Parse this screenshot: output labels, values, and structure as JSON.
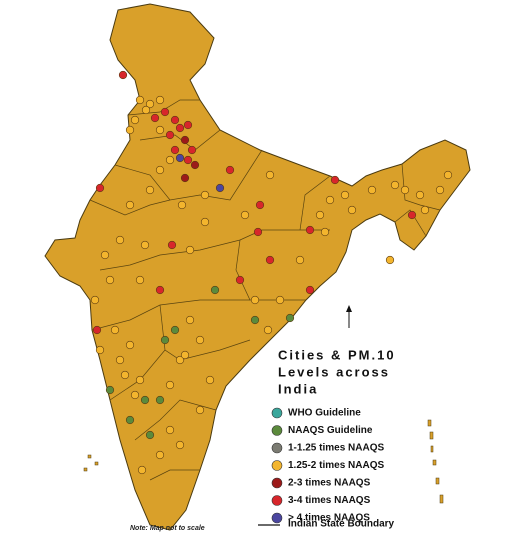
{
  "title_lines": [
    "Cities & PM.10",
    "Levels across",
    "India"
  ],
  "legend": [
    {
      "label": "WHO Guideline",
      "color": "#3aa79c"
    },
    {
      "label": "NAAQS Guideline",
      "color": "#5b8a3c"
    },
    {
      "label": "1-1.25 times NAAQS",
      "color": "#7b7b72"
    },
    {
      "label": "1.25-2 times NAAQS",
      "color": "#f3b52e"
    },
    {
      "label": "2-3 times NAAQS",
      "color": "#9c1a1a"
    },
    {
      "label": "3-4 times NAAQS",
      "color": "#d7262b"
    },
    {
      "label": "> 4 times NAAQS",
      "color": "#4b46a0"
    }
  ],
  "boundary_label": "Indian State Boundary",
  "note": "Note: Map not to scale"
}
